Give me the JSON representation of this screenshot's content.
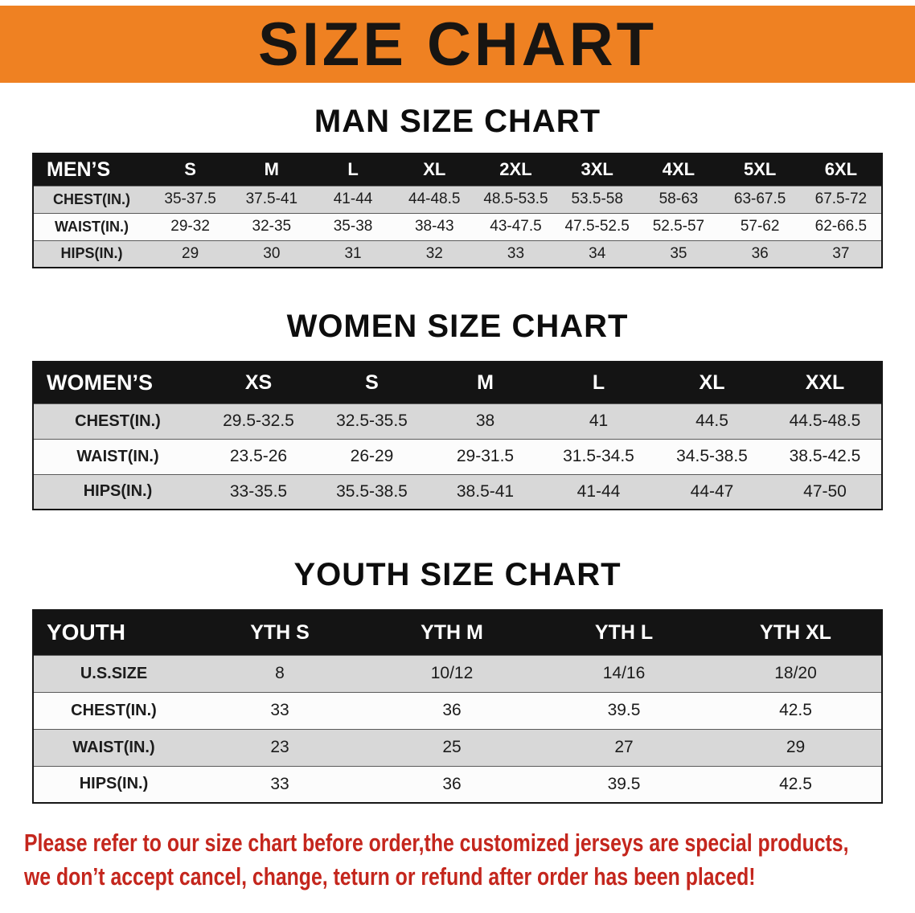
{
  "banner": {
    "title": "SIZE CHART",
    "bg_color": "#ef8122",
    "text_color": "#181512"
  },
  "sections": [
    {
      "heading": "MAN SIZE CHART",
      "table": {
        "name": "mens",
        "header": [
          "MEN’S",
          "S",
          "M",
          "L",
          "XL",
          "2XL",
          "3XL",
          "4XL",
          "5XL",
          "6XL"
        ],
        "rows": [
          [
            "CHEST(IN.)",
            "35-37.5",
            "37.5-41",
            "41-44",
            "44-48.5",
            "48.5-53.5",
            "53.5-58",
            "58-63",
            "63-67.5",
            "67.5-72"
          ],
          [
            "WAIST(IN.)",
            "29-32",
            "32-35",
            "35-38",
            "38-43",
            "43-47.5",
            "47.5-52.5",
            "52.5-57",
            "57-62",
            "62-66.5"
          ],
          [
            "HIPS(IN.)",
            "29",
            "30",
            "31",
            "32",
            "33",
            "34",
            "35",
            "36",
            "37"
          ]
        ]
      }
    },
    {
      "heading": "WOMEN SIZE CHART",
      "table": {
        "name": "womens",
        "header": [
          "WOMEN’S",
          "XS",
          "S",
          "M",
          "L",
          "XL",
          "XXL"
        ],
        "rows": [
          [
            "CHEST(IN.)",
            "29.5-32.5",
            "32.5-35.5",
            "38",
            "41",
            "44.5",
            "44.5-48.5"
          ],
          [
            "WAIST(IN.)",
            "23.5-26",
            "26-29",
            "29-31.5",
            "31.5-34.5",
            "34.5-38.5",
            "38.5-42.5"
          ],
          [
            "HIPS(IN.)",
            "33-35.5",
            "35.5-38.5",
            "38.5-41",
            "41-44",
            "44-47",
            "47-50"
          ]
        ]
      }
    },
    {
      "heading": "YOUTH SIZE CHART",
      "table": {
        "name": "youth",
        "header": [
          "YOUTH",
          "YTH S",
          "YTH M",
          "YTH L",
          "YTH XL"
        ],
        "rows": [
          [
            "U.S.SIZE",
            "8",
            "10/12",
            "14/16",
            "18/20"
          ],
          [
            "CHEST(IN.)",
            "33",
            "36",
            "39.5",
            "42.5"
          ],
          [
            "WAIST(IN.)",
            "23",
            "25",
            "27",
            "29"
          ],
          [
            "HIPS(IN.)",
            "33",
            "36",
            "39.5",
            "42.5"
          ]
        ]
      }
    }
  ],
  "footer": {
    "line1": "Please refer to our size chart before order,the customized jerseys are special products,",
    "line2": "we don’t accept cancel, change, teturn or refund after order has been placed!",
    "text_color": "#c4261d"
  }
}
